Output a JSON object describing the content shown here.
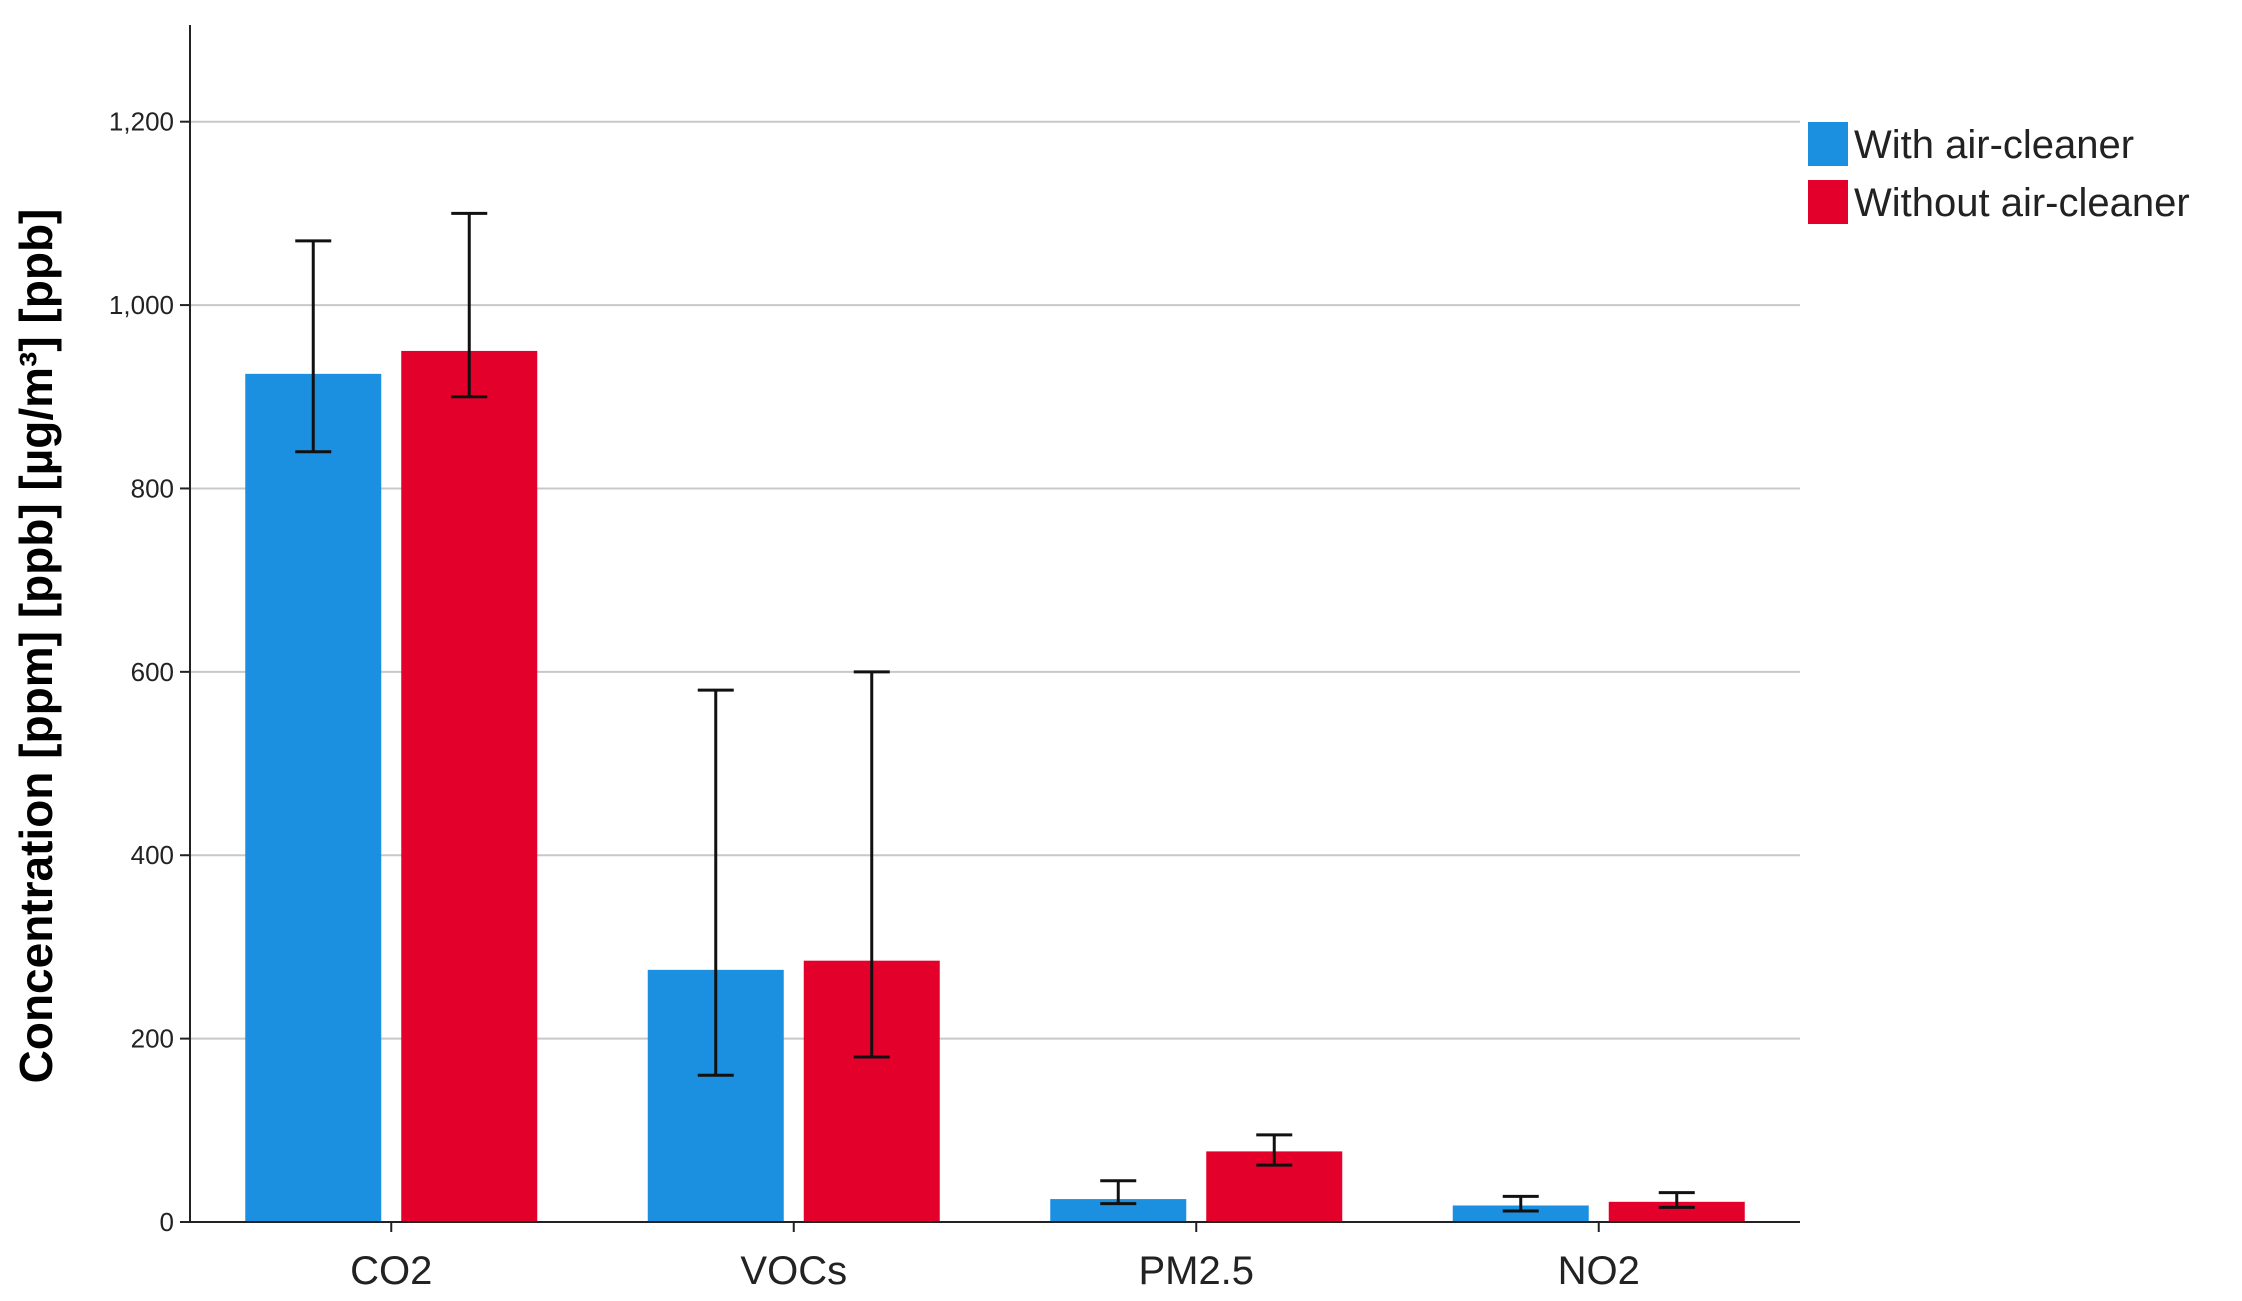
{
  "chart_data": {
    "type": "bar",
    "title": "",
    "xlabel": "",
    "ylabel": "Concentration [ppm] [ppb] [µg/m³] [ppb]",
    "categories": [
      "CO2",
      "VOCs",
      "PM2.5",
      "NO2"
    ],
    "series": [
      {
        "name": "With air-cleaner",
        "color": "#1b8fe0",
        "values": [
          925,
          275,
          25,
          18
        ],
        "error_low": [
          840,
          160,
          20,
          12
        ],
        "error_high": [
          1070,
          580,
          45,
          28
        ]
      },
      {
        "name": "Without air-cleaner",
        "color": "#e3002b",
        "values": [
          950,
          285,
          77,
          22
        ],
        "error_low": [
          900,
          180,
          62,
          16
        ],
        "error_high": [
          1100,
          600,
          95,
          32
        ]
      }
    ],
    "ylim": [
      0,
      1300
    ],
    "yticks": [
      0,
      200,
      400,
      600,
      800,
      1000,
      1200
    ],
    "ytick_labels": [
      "0",
      "200",
      "400",
      "600",
      "800",
      "1,000",
      "1,200"
    ],
    "grid": true,
    "legend_position": "top-right"
  }
}
